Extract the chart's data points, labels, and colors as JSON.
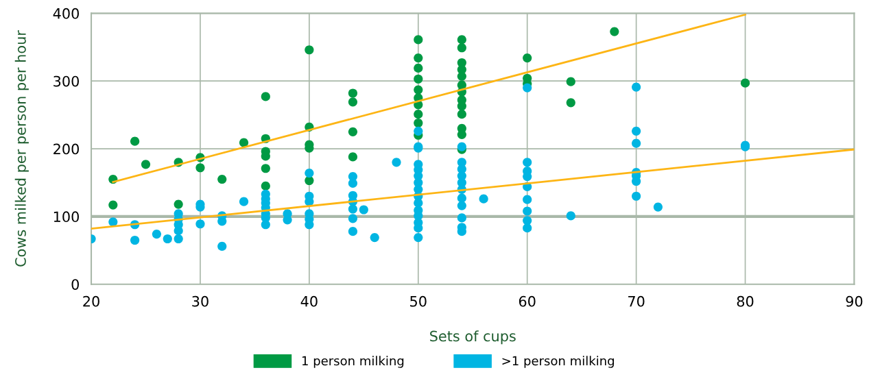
{
  "chart_data": {
    "type": "scatter",
    "xlabel": "Sets of cups",
    "ylabel": "Cows milked per person per hour",
    "xlim": [
      20,
      90
    ],
    "xticks": [
      20,
      30,
      40,
      50,
      60,
      70,
      80,
      90
    ],
    "ylim": [
      0,
      400
    ],
    "yticks": [
      0,
      100,
      200,
      300,
      400
    ],
    "grid": true,
    "legend": "bottom",
    "marker": "circle",
    "ref_lines": [
      {
        "axis": "y",
        "value": 100,
        "color": "#a9b8a9"
      }
    ],
    "series": [
      {
        "name": "1 person milking",
        "color": "#009a44",
        "x": [
          22,
          22,
          24,
          25,
          28,
          28,
          30,
          30,
          32,
          34,
          36,
          36,
          36,
          36,
          36,
          36,
          40,
          40,
          40,
          40,
          40,
          44,
          44,
          44,
          44,
          50,
          50,
          50,
          50,
          50,
          50,
          50,
          50,
          50,
          50,
          54,
          54,
          54,
          54,
          54,
          54,
          54,
          54,
          54,
          54,
          54,
          54,
          54,
          60,
          60,
          60,
          64,
          64,
          68,
          80
        ],
        "values": [
          155,
          117,
          211,
          177,
          180,
          118,
          187,
          172,
          155,
          209,
          277,
          215,
          196,
          189,
          171,
          145,
          346,
          232,
          206,
          201,
          153,
          282,
          269,
          225,
          188,
          361,
          334,
          319,
          303,
          287,
          275,
          265,
          251,
          238,
          220,
          361,
          349,
          327,
          317,
          307,
          294,
          284,
          272,
          263,
          251,
          230,
          221,
          199,
          334,
          304,
          296,
          299,
          268,
          373,
          297
        ]
      },
      {
        "name": ">1 person milking",
        "color": "#00b5e2",
        "x": [
          20,
          22,
          24,
          24,
          26,
          27,
          28,
          28,
          28,
          28,
          28,
          30,
          30,
          30,
          32,
          32,
          32,
          34,
          36,
          36,
          36,
          36,
          36,
          36,
          36,
          38,
          38,
          40,
          40,
          40,
          40,
          40,
          40,
          44,
          44,
          44,
          44,
          44,
          44,
          44,
          45,
          46,
          48,
          50,
          50,
          50,
          50,
          50,
          50,
          50,
          50,
          50,
          50,
          50,
          50,
          50,
          50,
          50,
          54,
          54,
          54,
          54,
          54,
          54,
          54,
          54,
          54,
          54,
          54,
          56,
          60,
          60,
          60,
          60,
          60,
          60,
          60,
          60,
          60,
          64,
          70,
          70,
          70,
          70,
          70,
          70,
          70,
          72,
          80,
          80
        ],
        "values": [
          67,
          92,
          88,
          65,
          74,
          67,
          104,
          96,
          88,
          79,
          67,
          118,
          114,
          89,
          101,
          93,
          56,
          122,
          133,
          126,
          120,
          113,
          104,
          98,
          88,
          104,
          95,
          164,
          130,
          122,
          104,
          96,
          88,
          159,
          149,
          131,
          122,
          111,
          97,
          78,
          110,
          69,
          180,
          226,
          203,
          177,
          169,
          160,
          150,
          140,
          130,
          120,
          109,
          101,
          91,
          83,
          69,
          201,
          203,
          180,
          170,
          160,
          150,
          140,
          127,
          116,
          98,
          84,
          78,
          126,
          290,
          180,
          167,
          159,
          144,
          125,
          108,
          94,
          83,
          101,
          291,
          226,
          208,
          165,
          160,
          152,
          130,
          114,
          205,
          203
        ]
      },
      {
        "type": "line",
        "marker": "none",
        "color": "#fdb515",
        "x": [
          22,
          80
        ],
        "values": [
          151,
          398
        ]
      },
      {
        "type": "line",
        "marker": "none",
        "color": "#fdb515",
        "x": [
          20,
          90
        ],
        "values": [
          82,
          199
        ]
      }
    ]
  }
}
